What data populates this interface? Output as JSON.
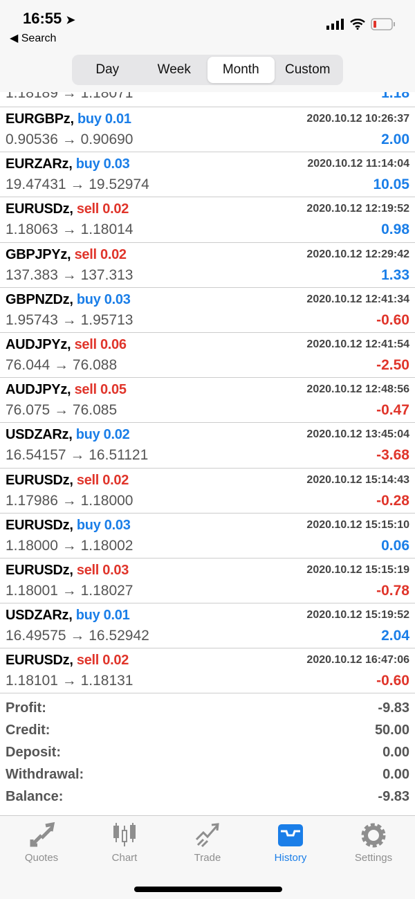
{
  "status": {
    "time": "16:55",
    "back": "Search"
  },
  "segments": [
    {
      "label": "Day",
      "active": false
    },
    {
      "label": "Week",
      "active": false
    },
    {
      "label": "Month",
      "active": true
    },
    {
      "label": "Custom",
      "active": false
    }
  ],
  "partial_row": {
    "prices": "1.18189 → 1.18071",
    "profit": "1.18"
  },
  "trades": [
    {
      "symbol": "EURGBPz,",
      "side": "buy",
      "volume": "buy 0.01",
      "date": "2020.10.12 10:26:37",
      "prices": "0.90536 → 0.90690",
      "profit": "2.00"
    },
    {
      "symbol": "EURZARz,",
      "side": "buy",
      "volume": "buy 0.03",
      "date": "2020.10.12 11:14:04",
      "prices": "19.47431 → 19.52974",
      "profit": "10.05"
    },
    {
      "symbol": "EURUSDz,",
      "side": "sell",
      "volume": "sell 0.02",
      "date": "2020.10.12 12:19:52",
      "prices": "1.18063 → 1.18014",
      "profit": "0.98"
    },
    {
      "symbol": "GBPJPYz,",
      "side": "sell",
      "volume": "sell 0.02",
      "date": "2020.10.12 12:29:42",
      "prices": "137.383 → 137.313",
      "profit": "1.33"
    },
    {
      "symbol": "GBPNZDz,",
      "side": "buy",
      "volume": "buy 0.03",
      "date": "2020.10.12 12:41:34",
      "prices": "1.95743 → 1.95713",
      "profit": "-0.60"
    },
    {
      "symbol": "AUDJPYz,",
      "side": "sell",
      "volume": "sell 0.06",
      "date": "2020.10.12 12:41:54",
      "prices": "76.044 → 76.088",
      "profit": "-2.50"
    },
    {
      "symbol": "AUDJPYz,",
      "side": "sell",
      "volume": "sell 0.05",
      "date": "2020.10.12 12:48:56",
      "prices": "76.075 → 76.085",
      "profit": "-0.47"
    },
    {
      "symbol": "USDZARz,",
      "side": "buy",
      "volume": "buy 0.02",
      "date": "2020.10.12 13:45:04",
      "prices": "16.54157 → 16.51121",
      "profit": "-3.68"
    },
    {
      "symbol": "EURUSDz,",
      "side": "sell",
      "volume": "sell 0.02",
      "date": "2020.10.12 15:14:43",
      "prices": "1.17986 → 1.18000",
      "profit": "-0.28"
    },
    {
      "symbol": "EURUSDz,",
      "side": "buy",
      "volume": "buy 0.03",
      "date": "2020.10.12 15:15:10",
      "prices": "1.18000 → 1.18002",
      "profit": "0.06"
    },
    {
      "symbol": "EURUSDz,",
      "side": "sell",
      "volume": "sell 0.03",
      "date": "2020.10.12 15:15:19",
      "prices": "1.18001 → 1.18027",
      "profit": "-0.78"
    },
    {
      "symbol": "USDZARz,",
      "side": "buy",
      "volume": "buy 0.01",
      "date": "2020.10.12 15:19:52",
      "prices": "16.49575 → 16.52942",
      "profit": "2.04"
    },
    {
      "symbol": "EURUSDz,",
      "side": "sell",
      "volume": "sell 0.02",
      "date": "2020.10.12 16:47:06",
      "prices": "1.18101 → 1.18131",
      "profit": "-0.60"
    }
  ],
  "summary": [
    {
      "label": "Profit:",
      "value": "-9.83"
    },
    {
      "label": "Credit:",
      "value": "50.00"
    },
    {
      "label": "Deposit:",
      "value": "0.00"
    },
    {
      "label": "Withdrawal:",
      "value": "0.00"
    },
    {
      "label": "Balance:",
      "value": "-9.83"
    }
  ],
  "tabs": [
    {
      "label": "Quotes",
      "icon": "quotes-arrows-icon"
    },
    {
      "label": "Chart",
      "icon": "candlestick-icon"
    },
    {
      "label": "Trade",
      "icon": "trade-trend-icon"
    },
    {
      "label": "History",
      "icon": "inbox-tray-icon",
      "active": true
    },
    {
      "label": "Settings",
      "icon": "gear-icon"
    }
  ],
  "colors": {
    "buy": "#1a7ee8",
    "sell": "#e0352b",
    "accent": "#1a7ee8"
  }
}
